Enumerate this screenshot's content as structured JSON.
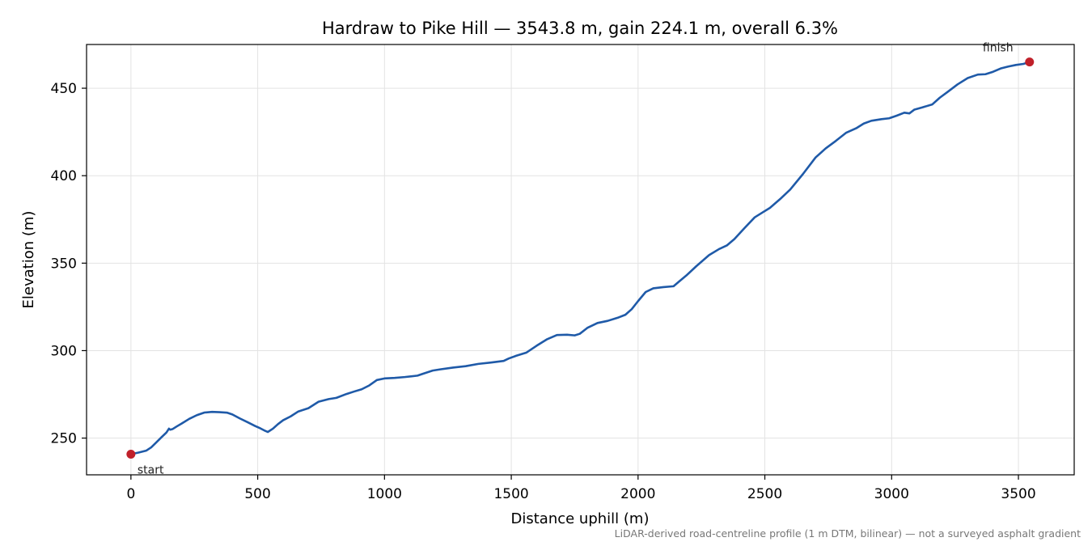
{
  "chart_data": {
    "type": "line",
    "title": "Hardraw to Pike Hill — 3543.8 m, gain 224.1 m, overall 6.3%",
    "xlabel": "Distance uphill (m)",
    "ylabel": "Elevation (m)",
    "xlim": [
      -175,
      3720
    ],
    "ylim": [
      229,
      475
    ],
    "xticks": [
      0,
      500,
      1000,
      1500,
      2000,
      2500,
      3000,
      3500
    ],
    "yticks": [
      250,
      300,
      350,
      400,
      450
    ],
    "grid": true,
    "line_color": "#1f5aa8",
    "marker_color": "#c0202a",
    "series": [
      {
        "x": [
          0,
          30,
          60,
          80,
          100,
          120,
          140,
          150,
          155,
          165,
          180,
          200,
          230,
          260,
          290,
          320,
          350,
          380,
          400,
          430,
          460,
          490,
          510,
          530,
          540,
          560,
          580,
          600,
          630,
          660,
          700,
          740,
          780,
          810,
          850,
          880,
          910,
          940,
          970,
          1000,
          1040,
          1080,
          1130,
          1150,
          1190,
          1220,
          1270,
          1320,
          1370,
          1420,
          1470,
          1490,
          1520,
          1560,
          1600,
          1640,
          1680,
          1720,
          1750,
          1770,
          1800,
          1840,
          1880,
          1920,
          1950,
          1975,
          2000,
          2030,
          2060,
          2100,
          2140,
          2160,
          2190,
          2230,
          2280,
          2320,
          2350,
          2380,
          2420,
          2460,
          2490,
          2520,
          2560,
          2600,
          2650,
          2700,
          2740,
          2780,
          2820,
          2860,
          2890,
          2920,
          2960,
          2990,
          3020,
          3050,
          3070,
          3090,
          3120,
          3160,
          3190,
          3220,
          3260,
          3300,
          3340,
          3370,
          3400,
          3430,
          3460,
          3490,
          3520,
          3543.8
        ],
        "y": [
          240.8,
          241.7,
          242.8,
          244.7,
          247.5,
          250.4,
          253.2,
          255.4,
          254.8,
          255.2,
          256.6,
          258.3,
          261.0,
          263.1,
          264.6,
          265.0,
          264.8,
          264.5,
          263.5,
          261.2,
          259.1,
          256.9,
          255.6,
          254.1,
          253.5,
          255.4,
          258.0,
          260.2,
          262.4,
          265.2,
          267.1,
          270.8,
          272.3,
          273.0,
          275.2,
          276.6,
          277.9,
          280.1,
          283.2,
          284.1,
          284.4,
          284.9,
          285.7,
          286.7,
          288.6,
          289.3,
          290.3,
          291.1,
          292.4,
          293.2,
          294.1,
          295.5,
          297.1,
          298.9,
          302.8,
          306.4,
          308.9,
          309.1,
          308.7,
          309.6,
          313.0,
          315.8,
          317.0,
          318.8,
          320.5,
          323.7,
          328.3,
          333.5,
          335.6,
          336.3,
          336.8,
          339.3,
          342.9,
          348.3,
          354.6,
          358.1,
          360.1,
          363.8,
          370.1,
          376.2,
          378.9,
          381.6,
          386.6,
          392.1,
          400.9,
          410.4,
          415.6,
          419.9,
          424.5,
          427.1,
          429.8,
          431.4,
          432.3,
          432.8,
          434.3,
          436.0,
          435.6,
          437.8,
          439.0,
          440.7,
          444.6,
          447.8,
          452.2,
          455.8,
          457.8,
          458.0,
          459.4,
          461.3,
          462.4,
          463.3,
          463.9,
          465.0
        ]
      }
    ],
    "points": {
      "start": {
        "x": 0,
        "y": 240.8,
        "label": "start"
      },
      "finish": {
        "x": 3543.8,
        "y": 465.0,
        "label": "finish"
      }
    },
    "caption": "LiDAR-derived road-centreline profile (1 m DTM, bilinear) — not a surveyed asphalt gradient"
  }
}
